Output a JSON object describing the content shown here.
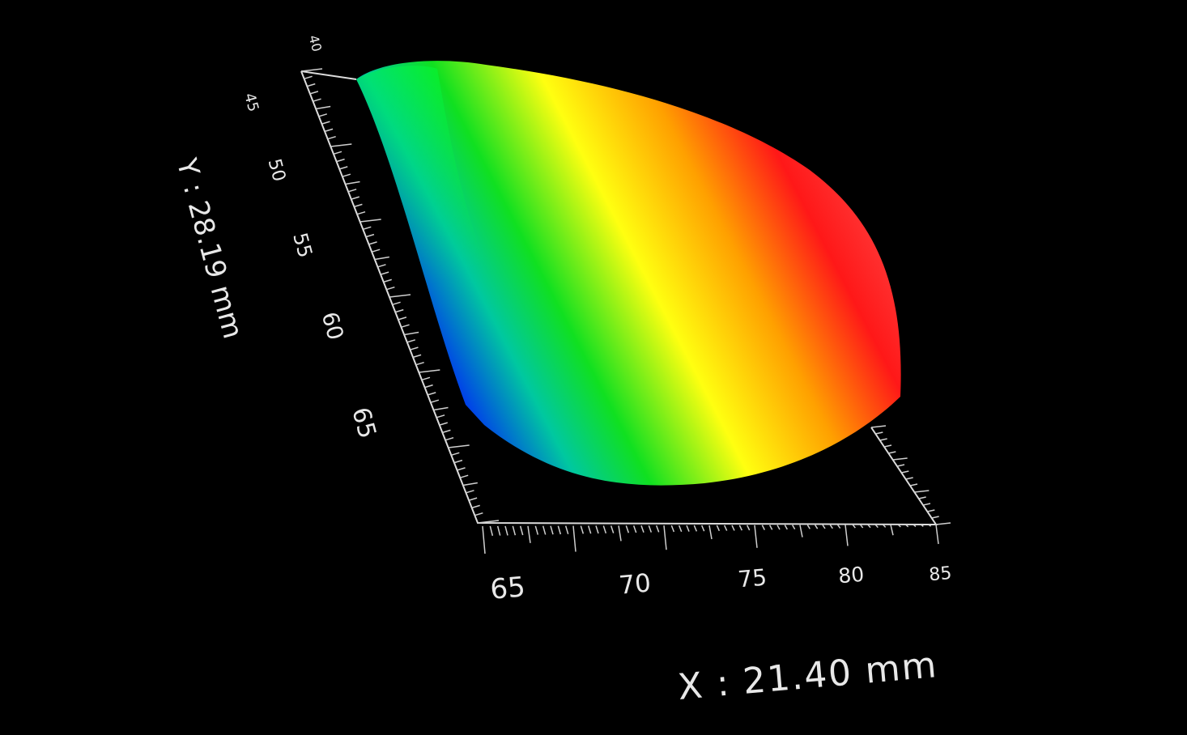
{
  "y_axis": {
    "label": "Y : 28.19 mm",
    "ticks": [
      "40",
      "45",
      "50",
      "55",
      "60",
      "65"
    ]
  },
  "x_axis": {
    "label": "X : 21.40 mm",
    "ticks": [
      "65",
      "70",
      "75",
      "80",
      "85"
    ]
  }
}
